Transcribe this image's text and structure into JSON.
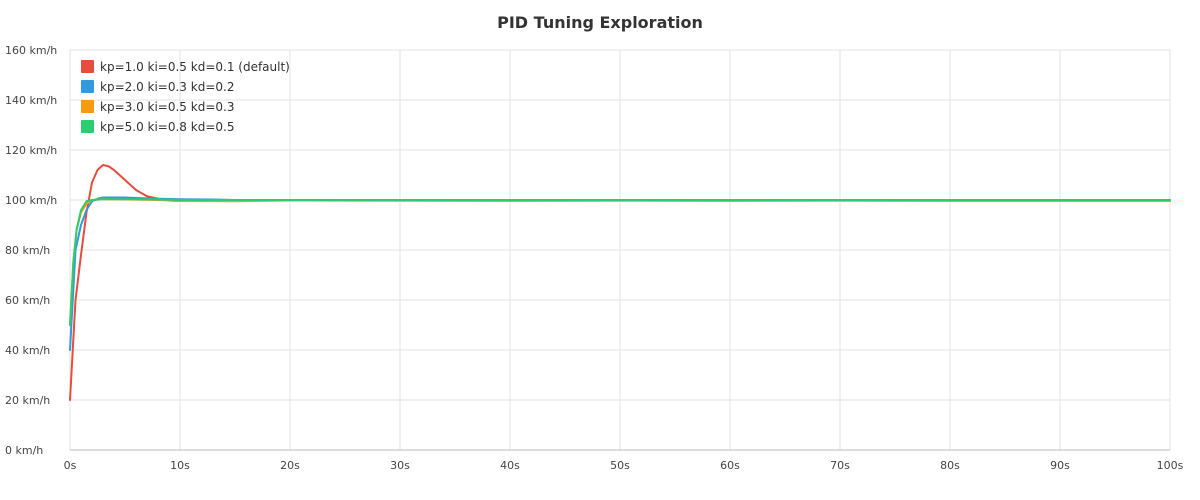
{
  "chart_data": {
    "type": "line",
    "title": "PID Tuning Exploration",
    "xlabel": "",
    "ylabel": "",
    "xlim": [
      0,
      100
    ],
    "ylim": [
      0,
      160
    ],
    "x_ticks": [
      0,
      10,
      20,
      30,
      40,
      50,
      60,
      70,
      80,
      90,
      100
    ],
    "x_tick_labels": [
      "0s",
      "10s",
      "20s",
      "30s",
      "40s",
      "50s",
      "60s",
      "70s",
      "80s",
      "90s",
      "100s"
    ],
    "y_ticks": [
      0,
      20,
      40,
      60,
      80,
      100,
      120,
      140,
      160
    ],
    "y_tick_labels": [
      "0 km/h",
      "20 km/h",
      "40 km/h",
      "60 km/h",
      "80 km/h",
      "100 km/h",
      "120 km/h",
      "140 km/h",
      "160 km/h"
    ],
    "grid": true,
    "legend_position": "top-left",
    "series": [
      {
        "name": "kp=1.0 ki=0.5 kd=0.1 (default)",
        "color": "#e74c3c",
        "x": [
          0,
          0.5,
          1,
          1.5,
          2,
          2.5,
          3,
          3.5,
          4,
          5,
          6,
          7,
          8,
          9,
          10,
          15,
          20,
          30,
          40,
          50,
          60,
          70,
          80,
          90,
          100
        ],
        "y": [
          20,
          60,
          78,
          95,
          107,
          112,
          114,
          113.5,
          112,
          108,
          104,
          101.5,
          100.5,
          99.8,
          99.6,
          99.7,
          100,
          99.8,
          100,
          99.9,
          100,
          99.8,
          99.9,
          100,
          99.8
        ]
      },
      {
        "name": "kp=2.0 ki=0.3 kd=0.2",
        "color": "#3498db",
        "x": [
          0,
          0.5,
          1,
          1.5,
          2,
          2.5,
          3,
          4,
          5,
          6,
          8,
          10,
          13,
          15,
          20,
          30,
          40,
          50,
          60,
          70,
          80,
          90,
          100
        ],
        "y": [
          40,
          80,
          90,
          96,
          99.5,
          100.5,
          101,
          101,
          101,
          100.8,
          100.5,
          100.3,
          100.2,
          100,
          100,
          99.9,
          100,
          100,
          100,
          99.9,
          100,
          100,
          100
        ]
      },
      {
        "name": "kp=3.0 ki=0.5 kd=0.3",
        "color": "#f39c12",
        "x": [
          0,
          0.3,
          0.6,
          1,
          1.5,
          2,
          3,
          5,
          8,
          10,
          15,
          20,
          30,
          40,
          50,
          60,
          70,
          80,
          90,
          100
        ],
        "y": [
          50,
          75,
          88,
          95,
          98.5,
          100,
          100.3,
          100.2,
          100,
          99.6,
          99.5,
          99.8,
          99.7,
          99.6,
          99.7,
          99.6,
          99.7,
          99.6,
          99.6,
          99.6
        ]
      },
      {
        "name": "kp=5.0 ki=0.8 kd=0.5",
        "color": "#2ecc71",
        "x": [
          0,
          0.3,
          0.6,
          1,
          1.5,
          2,
          3,
          5,
          8,
          10,
          15,
          20,
          30,
          40,
          50,
          60,
          70,
          80,
          90,
          100
        ],
        "y": [
          50,
          75,
          88,
          96,
          99.5,
          100,
          100.3,
          100.3,
          100.2,
          100,
          100,
          100,
          100,
          100,
          100,
          100,
          100,
          100,
          100,
          100
        ]
      }
    ]
  }
}
